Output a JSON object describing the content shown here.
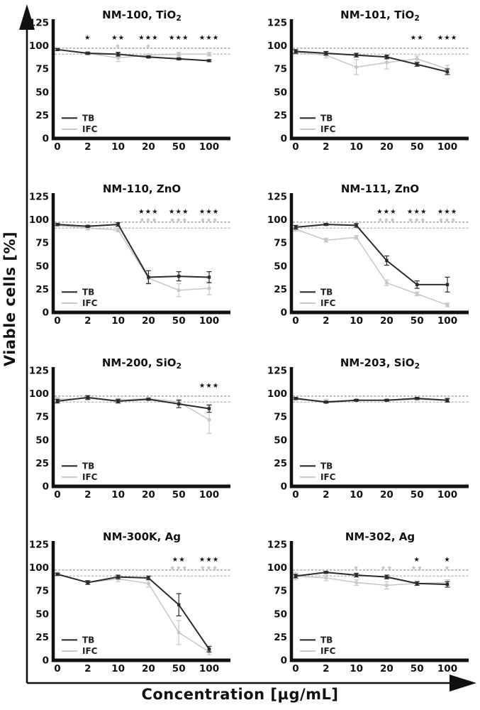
{
  "figure": {
    "y_axis_label": "Viable cells [%]",
    "x_axis_label": "Concentration [µg/mL]"
  },
  "chart_data": {
    "type": "line",
    "layout": "small-multiples 4 rows x 2 cols",
    "categories": [
      "0",
      "2",
      "10",
      "20",
      "50",
      "100"
    ],
    "x_axis_label": "Concentration [µg/mL]",
    "y_axis_label": "Viable cells [%]",
    "ylim": [
      0,
      125
    ],
    "yticks": [
      0,
      25,
      50,
      75,
      100,
      125
    ],
    "grid": false,
    "legend": {
      "position": "inside-bottom-left",
      "entries": [
        "TB",
        "IFC"
      ]
    },
    "reference_lines": [
      {
        "y": 97.5,
        "style": "dashed",
        "color": "#8f8f8f"
      },
      {
        "y": 91,
        "style": "dashed",
        "color": "#b8b8b8"
      }
    ],
    "colors": {
      "TB": "#2b2b2b",
      "IFC": "#c6c6c6",
      "sig_black": "#111111",
      "sig_gray": "#bdbdbd",
      "axis": "#111111"
    },
    "sig_marker": "★",
    "panels": [
      {
        "title_main": "NM-100, TiO",
        "title_sub": "2",
        "series": [
          {
            "name": "TB",
            "values": [
              96,
              92,
              91,
              88,
              86,
              84
            ],
            "errors": [
              1,
              1,
              2,
              1,
              1,
              1
            ]
          },
          {
            "name": "IFC",
            "values": [
              96,
              92,
              87,
              90,
              91,
              91
            ],
            "errors": [
              1,
              2,
              4,
              1,
              2,
              2
            ]
          }
        ],
        "significance": {
          "black": [
            "",
            "*",
            "**",
            "***",
            "***",
            "***"
          ],
          "gray": [
            "",
            "",
            "*",
            "*",
            "",
            ""
          ]
        }
      },
      {
        "title_main": "NM-101, TiO",
        "title_sub": "2",
        "series": [
          {
            "name": "TB",
            "values": [
              94,
              92,
              90,
              88,
              80,
              72
            ],
            "errors": [
              2,
              2,
              2,
              2,
              2,
              3
            ]
          },
          {
            "name": "IFC",
            "values": [
              93,
              90,
              77,
              82,
              86,
              75
            ],
            "errors": [
              2,
              3,
              8,
              7,
              3,
              4
            ]
          }
        ],
        "significance": {
          "black": [
            "",
            "",
            "",
            "",
            "**",
            "***"
          ],
          "gray": [
            "",
            "",
            "",
            "",
            "",
            ""
          ]
        }
      },
      {
        "title_main": "NM-110, ZnO",
        "title_sub": "",
        "series": [
          {
            "name": "TB",
            "values": [
              95,
              93,
              95,
              38,
              39,
              38
            ],
            "errors": [
              1,
              1,
              2,
              7,
              5,
              6
            ]
          },
          {
            "name": "IFC",
            "values": [
              94,
              91,
              89,
              37,
              24,
              26
            ],
            "errors": [
              1,
              2,
              2,
              5,
              7,
              7
            ]
          }
        ],
        "significance": {
          "black": [
            "",
            "",
            "",
            "***",
            "***",
            "***"
          ],
          "gray": [
            "",
            "",
            "",
            "***",
            "***",
            "***"
          ]
        }
      },
      {
        "title_main": "NM-111, ZnO",
        "title_sub": "",
        "series": [
          {
            "name": "TB",
            "values": [
              92,
              95,
              94,
              56,
              30,
              30
            ],
            "errors": [
              2,
              1,
              2,
              5,
              4,
              8
            ]
          },
          {
            "name": "IFC",
            "values": [
              90,
              78,
              81,
              32,
              20,
              8
            ],
            "errors": [
              2,
              2,
              2,
              3,
              2,
              2
            ]
          }
        ],
        "significance": {
          "black": [
            "",
            "",
            "",
            "***",
            "***",
            "***"
          ],
          "gray": [
            "",
            "",
            "",
            "***",
            "***",
            "***"
          ]
        }
      },
      {
        "title_main": "NM-200, SiO",
        "title_sub": "2",
        "series": [
          {
            "name": "TB",
            "values": [
              92,
              96,
              92,
              94,
              89,
              84
            ],
            "errors": [
              2,
              2,
              2,
              1,
              4,
              4
            ]
          },
          {
            "name": "IFC",
            "values": [
              94,
              95,
              93,
              95,
              91,
              72
            ],
            "errors": [
              2,
              2,
              2,
              1,
              3,
              15
            ]
          }
        ],
        "significance": {
          "black": [
            "",
            "",
            "",
            "",
            "",
            "***"
          ],
          "gray": [
            "",
            "",
            "",
            "",
            "",
            ""
          ]
        }
      },
      {
        "title_main": "NM-203, SiO",
        "title_sub": "2",
        "series": [
          {
            "name": "TB",
            "values": [
              95,
              91,
              93,
              93,
              95,
              93
            ],
            "errors": [
              1,
              1,
              1,
              1,
              1,
              2
            ]
          },
          {
            "name": "IFC",
            "values": [
              94,
              92,
              93,
              93,
              94,
              93
            ],
            "errors": [
              1,
              2,
              1,
              1,
              1,
              1
            ]
          }
        ],
        "significance": {
          "black": [
            "",
            "",
            "",
            "",
            "",
            ""
          ],
          "gray": [
            "",
            "",
            "",
            "",
            "",
            ""
          ]
        }
      },
      {
        "title_main": "NM-300K, Ag",
        "title_sub": "",
        "series": [
          {
            "name": "TB",
            "values": [
              93,
              84,
              90,
              89,
              60,
              12
            ],
            "errors": [
              1,
              2,
              2,
              2,
              12,
              3
            ]
          },
          {
            "name": "IFC",
            "values": [
              93,
              84,
              88,
              83,
              30,
              9
            ],
            "errors": [
              2,
              2,
              3,
              4,
              13,
              3
            ]
          }
        ],
        "significance": {
          "black": [
            "",
            "",
            "",
            "",
            "**",
            "***"
          ],
          "gray": [
            "",
            "",
            "",
            "",
            "***",
            "***"
          ]
        }
      },
      {
        "title_main": "NM-302, Ag",
        "title_sub": "",
        "series": [
          {
            "name": "TB",
            "values": [
              91,
              95,
              92,
              90,
              83,
              82
            ],
            "errors": [
              2,
              1,
              2,
              2,
              2,
              3
            ]
          },
          {
            "name": "IFC",
            "values": [
              91,
              89,
              84,
              81,
              83,
              84
            ],
            "errors": [
              4,
              3,
              3,
              4,
              2,
              3
            ]
          }
        ],
        "significance": {
          "black": [
            "",
            "",
            "",
            "",
            "*",
            "*"
          ],
          "gray": [
            "",
            "",
            "*",
            "**",
            "**",
            "*"
          ]
        }
      }
    ]
  }
}
